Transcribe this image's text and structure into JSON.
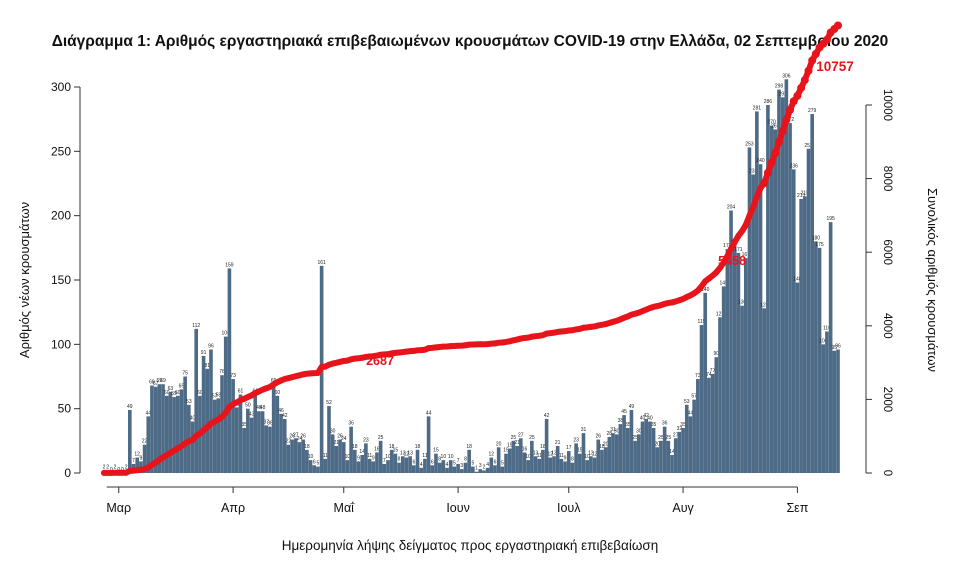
{
  "colors": {
    "bar": "#4d6a86",
    "cumulative_line": "#e8141b",
    "cumulative_label": "#e8141b",
    "axis": "#333333",
    "text": "#111111"
  },
  "chart_data": {
    "type": "bar",
    "title": "Διάγραμμα 1: Αριθμός εργαστηριακά επιβεβαιωμένων κρουσμάτων COVID-19 στην Ελλάδα, 02 Σεπτεμβρίου 2020",
    "xlabel": "Ημερομηνία λήψης δείγματος προς εργαστηριακή επιβεβαίωση",
    "ylabel": "Αριθμός νέων κρουσμάτων",
    "y2label": "Συνολικός αριθμός κρουσμάτων",
    "ylim": [
      0,
      320
    ],
    "y2lim": [
      0,
      10600
    ],
    "yticks": [
      0,
      50,
      100,
      150,
      200,
      250,
      300
    ],
    "y2ticks": [
      0,
      2000,
      4000,
      6000,
      8000,
      10000
    ],
    "xticks": [
      {
        "label": "Μαρ",
        "day": 4
      },
      {
        "label": "Απρ",
        "day": 35
      },
      {
        "label": "Μαΐ",
        "day": 65
      },
      {
        "label": "Ιουν",
        "day": 96
      },
      {
        "label": "Ιουλ",
        "day": 126
      },
      {
        "label": "Αυγ",
        "day": 157
      },
      {
        "label": "Σεπ",
        "day": 188
      }
    ],
    "start_day": 0,
    "values": [
      2,
      2,
      0,
      2,
      0,
      0,
      2,
      49,
      7,
      12,
      9,
      22,
      44,
      68,
      67,
      69,
      69,
      60,
      63,
      59,
      60,
      65,
      75,
      53,
      40,
      112,
      60,
      91,
      81,
      96,
      57,
      58,
      76,
      106,
      159,
      73,
      51,
      61,
      35,
      50,
      43,
      61,
      48,
      48,
      37,
      36,
      69,
      60,
      46,
      42,
      22,
      26,
      27,
      24,
      26,
      18,
      10,
      6,
      5,
      161,
      11,
      52,
      30,
      21,
      26,
      24,
      10,
      36,
      18,
      9,
      14,
      23,
      11,
      9,
      16,
      25,
      7,
      10,
      18,
      15,
      8,
      13,
      12,
      13,
      6,
      18,
      4,
      11,
      44,
      6,
      15,
      8,
      10,
      4,
      10,
      5,
      7,
      3,
      8,
      18,
      5,
      1,
      3,
      2,
      4,
      12,
      6,
      20,
      5,
      15,
      19,
      25,
      21,
      27,
      16,
      10,
      25,
      13,
      11,
      18,
      42,
      12,
      13,
      21,
      11,
      9,
      17,
      8,
      23,
      15,
      31,
      10,
      13,
      12,
      26,
      18,
      20,
      28,
      31,
      30,
      38,
      45,
      35,
      49,
      25,
      30,
      40,
      42,
      40,
      35,
      20,
      25,
      36,
      25,
      14,
      27,
      32,
      35,
      53,
      44,
      57,
      73,
      115,
      140,
      74,
      77,
      90,
      121,
      145,
      174,
      204,
      177,
      171,
      130,
      167,
      253,
      232,
      281,
      240,
      128,
      286,
      270,
      267,
      298,
      292,
      306,
      272,
      236,
      148,
      213,
      215,
      252,
      279,
      180,
      175,
      100,
      110,
      195,
      95,
      96
    ]
  },
  "labels": {
    "cum_mid1": "2687",
    "cum_mid2": "5458",
    "cum_final": "10757"
  }
}
